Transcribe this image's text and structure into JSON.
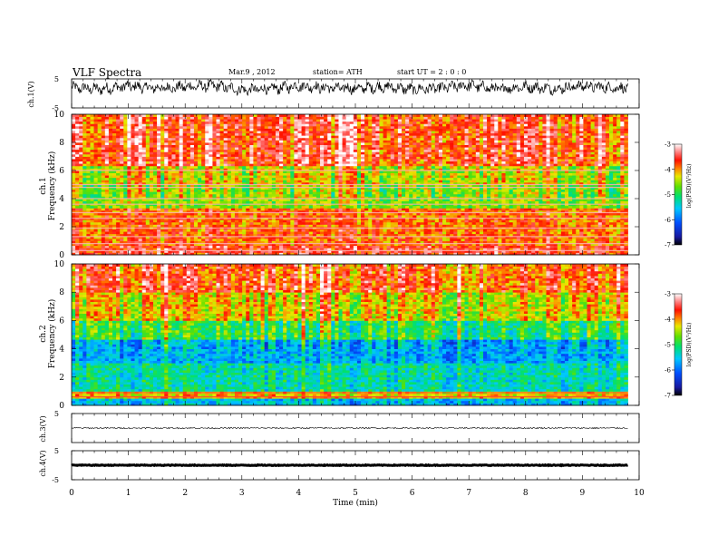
{
  "header": {
    "title": "VLF  Spectra",
    "date": "Mar.9   , 2012",
    "station": "station= ATH",
    "start": "start  UT  =    2  : 0   : 0"
  },
  "chart_data": [
    {
      "type": "line",
      "panel": "ch1-waveform",
      "ylabel": "ch.1(V)",
      "ylim": [
        -5,
        5
      ],
      "yticks": [
        "5",
        "-5"
      ],
      "xlim": [
        0,
        10
      ],
      "x_end": 9.8,
      "series": [
        {
          "description": "noisy waveform, mean level about 2 V, swinging between about -3 and 5 V",
          "x_min": [
            0,
            0.5,
            1,
            1.5,
            2,
            2.5,
            3,
            3.5,
            4,
            4.5,
            5,
            5.5,
            6,
            6.5,
            7,
            7.5,
            8,
            8.5,
            9,
            9.5,
            9.8
          ],
          "values": [
            2.0,
            1.5,
            2.5,
            1.8,
            2.2,
            2.7,
            1.2,
            1.5,
            2.6,
            1.9,
            1.7,
            2.3,
            1.4,
            1.8,
            2.8,
            1.5,
            2.3,
            1.6,
            2.6,
            2.0,
            1.9
          ]
        }
      ]
    },
    {
      "type": "heatmap",
      "panel": "ch1-spectrogram",
      "ylabel_channel": "ch.1",
      "ylabel": "Frequency  (kHz)",
      "ylim": [
        0,
        10
      ],
      "yticks": [
        "0",
        "2",
        "4",
        "6",
        "8",
        "10"
      ],
      "xlim": [
        0,
        10
      ],
      "x_end": 9.8,
      "colorbar": {
        "label": "log(PSD)(V²/Hz)",
        "range": [
          -7,
          -3
        ],
        "ticks": [
          "-3",
          "-4",
          "-5",
          "-6",
          "-7"
        ]
      },
      "bands_khz": [
        {
          "from": 0,
          "to": 0.6,
          "level": -3.6
        },
        {
          "from": 0.6,
          "to": 3.4,
          "level": -3.9
        },
        {
          "from": 3.4,
          "to": 5.0,
          "level": -4.6
        },
        {
          "from": 5.0,
          "to": 6.4,
          "level": -4.4
        },
        {
          "from": 6.4,
          "to": 10,
          "level": -3.7
        }
      ],
      "lines_khz": [
        0.3,
        0.8,
        1.3,
        1.9,
        2.6,
        3.0,
        3.6,
        4.0,
        4.8,
        5.0,
        6.0
      ],
      "line_level": -3.2
    },
    {
      "type": "heatmap",
      "panel": "ch2-spectrogram",
      "ylabel_channel": "ch.2",
      "ylabel": "Frequency  (kHz)",
      "ylim": [
        0,
        10
      ],
      "yticks": [
        "0",
        "2",
        "4",
        "6",
        "8",
        "10"
      ],
      "xlim": [
        0,
        10
      ],
      "x_end": 9.8,
      "colorbar": {
        "label": "log(PSD)(V²/Hz)",
        "range": [
          -7,
          -3
        ],
        "ticks": [
          "-3",
          "-4",
          "-5",
          "-6",
          "-7"
        ]
      },
      "bands_khz": [
        {
          "from": 0,
          "to": 0.5,
          "level": -5.6
        },
        {
          "from": 0.5,
          "to": 1.0,
          "level": -4.2
        },
        {
          "from": 1.0,
          "to": 3.0,
          "level": -5.3
        },
        {
          "from": 3.0,
          "to": 4.6,
          "level": -5.7
        },
        {
          "from": 4.6,
          "to": 6.0,
          "level": -5.0
        },
        {
          "from": 6.0,
          "to": 8.0,
          "level": -4.3
        },
        {
          "from": 8.0,
          "to": 10,
          "level": -3.8
        }
      ],
      "lines_khz": [
        0.6,
        0.9
      ],
      "line_level": -3.5
    },
    {
      "type": "line",
      "panel": "ch3-waveform",
      "ylabel": "ch.3(V)",
      "ylim": [
        -5,
        5
      ],
      "yticks": [
        "5"
      ],
      "xlim": [
        0,
        10
      ],
      "x_end": 9.8,
      "series": [
        {
          "description": "flat trace near 0 V with small noise",
          "level": 0
        }
      ]
    },
    {
      "type": "line",
      "panel": "ch4-waveform",
      "xlabel": "Time  (min)",
      "ylabel": "ch.4(V)",
      "ylim": [
        -5,
        5
      ],
      "yticks": [
        "5",
        "-5"
      ],
      "xlim": [
        0,
        10
      ],
      "x_end": 9.8,
      "xticks": [
        "0",
        "1",
        "2",
        "3",
        "4",
        "5",
        "6",
        "7",
        "8",
        "9",
        "10"
      ],
      "series": [
        {
          "description": "thick flat trace near 0 V",
          "level": 0
        }
      ]
    }
  ]
}
